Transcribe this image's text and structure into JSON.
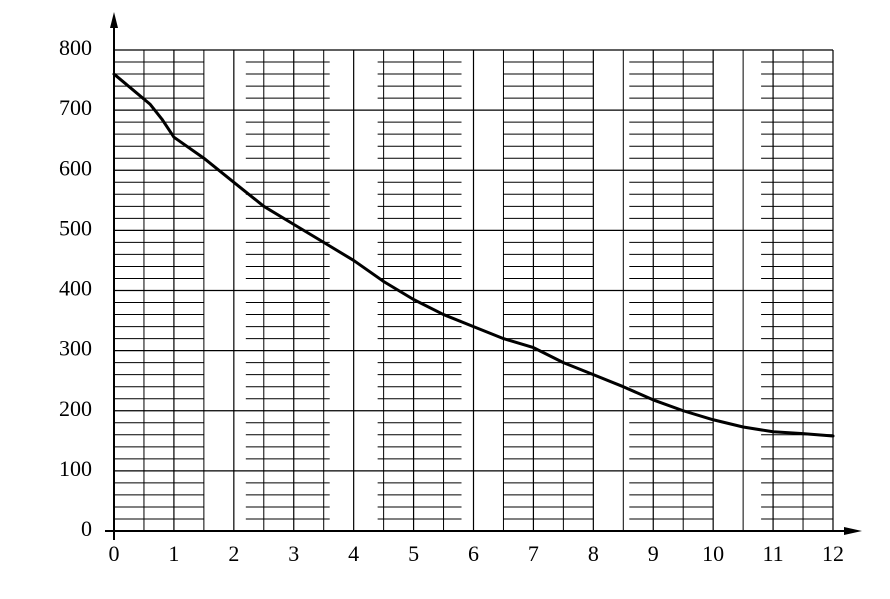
{
  "chart_data": {
    "type": "line",
    "x": [
      0,
      0.3,
      0.6,
      0.8,
      1,
      1.5,
      2,
      2.5,
      3,
      3.5,
      4,
      4.5,
      5,
      5.5,
      6,
      6.5,
      7,
      7.5,
      8,
      8.5,
      9,
      9.5,
      10,
      10.5,
      11,
      11.5,
      12
    ],
    "series": [
      {
        "color": "#000000",
        "values": [
          760,
          735,
          710,
          685,
          655,
          620,
          580,
          540,
          510,
          480,
          450,
          415,
          385,
          360,
          340,
          320,
          305,
          280,
          260,
          240,
          218,
          200,
          185,
          173,
          165,
          162,
          158
        ]
      }
    ],
    "xlim": [
      0,
      12
    ],
    "ylim": [
      0,
      800
    ],
    "xticks": [
      0,
      1,
      2,
      3,
      4,
      5,
      6,
      7,
      8,
      9,
      10,
      11,
      12
    ],
    "yticks": [
      0,
      100,
      200,
      300,
      400,
      500,
      600,
      700,
      800
    ],
    "grid": true
  }
}
